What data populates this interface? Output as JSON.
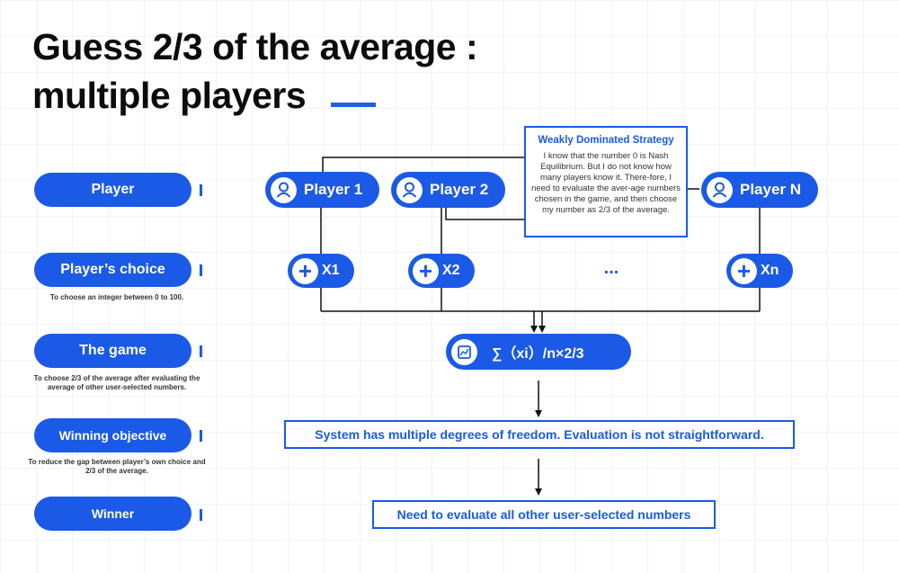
{
  "title": {
    "line1": "Guess 2/3 of the average :",
    "line2": "multiple players"
  },
  "rows": {
    "player": {
      "label": "Player"
    },
    "choice": {
      "label": "Player’s choice",
      "note": "To choose an integer between 0 to 100."
    },
    "game": {
      "label": "The game",
      "note": "To choose 2/3 of the average after evaluating the average of other user-selected numbers."
    },
    "objective": {
      "label": "Winning objective",
      "note": "To reduce the gap between player’s own choice and 2/3 of the average."
    },
    "winner": {
      "label": "Winner"
    }
  },
  "players": [
    {
      "label": "Player 1",
      "icon": "user-icon"
    },
    {
      "label": "Player 2",
      "icon": "user-icon"
    },
    {
      "label": "Player N",
      "icon": "user-icon"
    }
  ],
  "choices": [
    {
      "label": "X1",
      "icon": "plus-icon"
    },
    {
      "label": "X2",
      "icon": "plus-icon"
    },
    {
      "label": "Xn",
      "icon": "plus-icon"
    }
  ],
  "ellipsis": "...",
  "game_formula": "∑（xi）/n×2/3",
  "objective_text": "System has multiple degrees of freedom. Evaluation is not straightforward.",
  "winner_text": "Need to evaluate all other user-selected numbers",
  "annotation": {
    "title": "Weakly Dominated Strategy",
    "body": "I know that the number 0 is Nash Equilibrium. But I do not know how many players know it. There-fore, I need to evaluate the aver-age numbers chosen in the game, and then choose my number as 2/3 of the average."
  },
  "colors": {
    "accent": "#1a5ae6",
    "title": "#0c0c0c"
  }
}
